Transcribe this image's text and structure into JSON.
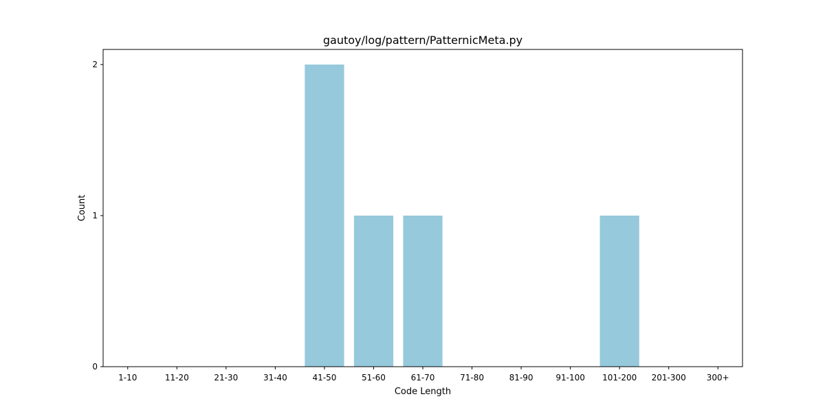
{
  "chart_data": {
    "type": "bar",
    "title": "gautoy/log/pattern/PatternicMeta.py",
    "xlabel": "Code Length",
    "ylabel": "Count",
    "categories": [
      "1-10",
      "11-20",
      "21-30",
      "31-40",
      "41-50",
      "51-60",
      "61-70",
      "71-80",
      "81-90",
      "91-100",
      "101-200",
      "201-300",
      "300+"
    ],
    "values": [
      0,
      0,
      0,
      0,
      2,
      1,
      1,
      0,
      0,
      0,
      1,
      0,
      0
    ],
    "ylim": [
      0,
      2.1
    ],
    "yticks": [
      0,
      1,
      2
    ],
    "bar_color": "#96c9dc",
    "grid": false,
    "legend": "none"
  }
}
